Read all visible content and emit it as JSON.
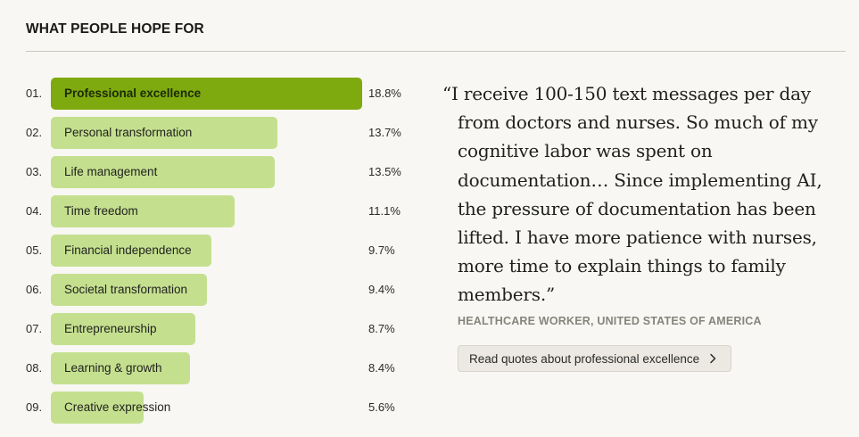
{
  "section_title": "WHAT PEOPLE HOPE FOR",
  "colors": {
    "top_bar": "#7faa0f",
    "bar": "#c4e08f",
    "background": "#f8f7f3"
  },
  "chart_data": {
    "type": "bar",
    "orientation": "horizontal",
    "title": "",
    "categories": [
      "Professional excellence",
      "Personal transformation",
      "Life management",
      "Time freedom",
      "Financial independence",
      "Societal transformation",
      "Entrepreneurship",
      "Learning & growth",
      "Creative expression"
    ],
    "ranks": [
      "01.",
      "02.",
      "03.",
      "04.",
      "05.",
      "06.",
      "07.",
      "08.",
      "09."
    ],
    "values": [
      18.8,
      13.7,
      13.5,
      11.1,
      9.7,
      9.4,
      8.7,
      8.4,
      5.6
    ],
    "value_labels": [
      "18.8%",
      "13.7%",
      "13.5%",
      "11.1%",
      "9.7%",
      "9.4%",
      "8.7%",
      "8.4%",
      "5.6%"
    ],
    "highlighted_index": 0,
    "xlabel": "",
    "ylabel": "",
    "grid": false
  },
  "quote": {
    "text": "“I receive 100-150 text messages per day from doctors and nurses. So much of my cognitive labor was spent on documentation… Since implementing AI, the pressure of documentation has been lifted. I have more patience with nurses, more time to explain things to family members.”",
    "attribution": "HEALTHCARE WORKER, UNITED STATES OF AMERICA",
    "button_label": "Read quotes about professional excellence",
    "button_icon": "chevron-right-icon"
  }
}
